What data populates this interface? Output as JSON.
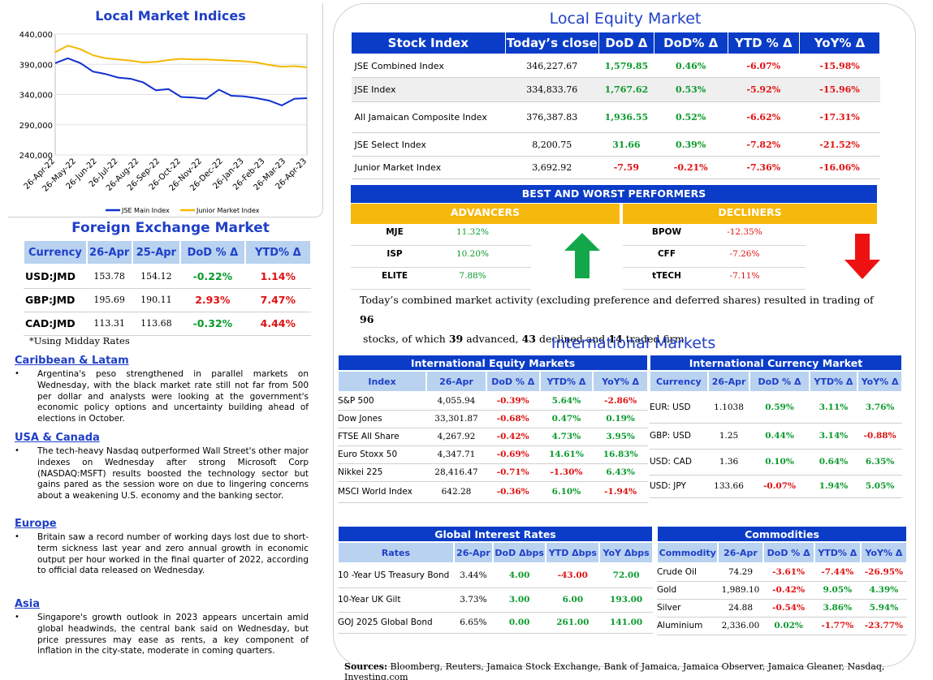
{
  "left": {
    "chart_title": "Local Market Indices",
    "chart_data": {
      "type": "line",
      "ylim": [
        240000,
        440000
      ],
      "yticks": [
        "440,000",
        "390,000",
        "340,000",
        "290,000",
        "240,000"
      ],
      "xticks": [
        "26-Apr-22",
        "26-May-22",
        "26-Jun-22",
        "26-Jul-22",
        "26-Aug-22",
        "26-Sep-22",
        "26-Oct-22",
        "26-Nov-22",
        "26-Dec-22",
        "26-Jan-23",
        "26-Feb-23",
        "26-Mar-23",
        "26-Apr-23"
      ],
      "series": [
        {
          "name": "JSE Main Index",
          "color": "#1030d0",
          "values": [
            392000,
            400000,
            392000,
            378000,
            374000,
            368000,
            366000,
            360000,
            347000,
            349000,
            336000,
            335000,
            333000,
            348000,
            338000,
            337000,
            334000,
            330000,
            322000,
            333000,
            334000
          ]
        },
        {
          "name": "Junior Market Index",
          "color": "#f5b800",
          "values": [
            410000,
            421000,
            415000,
            405000,
            400000,
            398000,
            396000,
            393000,
            394000,
            397000,
            399000,
            398000,
            398000,
            397000,
            396000,
            395000,
            393000,
            389000,
            386000,
            387000,
            385000
          ]
        }
      ]
    },
    "fx_title": "Foreign Exchange Market",
    "fx_headers": [
      "Currency",
      "26-Apr",
      "25-Apr",
      "DoD % Δ",
      "YTD% Δ"
    ],
    "fx_rows": [
      {
        "cur": "USD:JMD",
        "d1": "153.78",
        "d2": "154.12",
        "dod": "-0.22%",
        "ytd": "1.14%",
        "dod_cls": "pos",
        "ytd_cls": "neg"
      },
      {
        "cur": "GBP:JMD",
        "d1": "195.69",
        "d2": "190.11",
        "dod": "2.93%",
        "ytd": "7.47%",
        "dod_cls": "neg",
        "ytd_cls": "neg"
      },
      {
        "cur": "CAD:JMD",
        "d1": "113.31",
        "d2": "113.68",
        "dod": "-0.32%",
        "ytd": "4.44%",
        "dod_cls": "pos",
        "ytd_cls": "neg"
      }
    ],
    "fx_note": "*Using Midday Rates",
    "news": [
      {
        "head": "Caribbean & Latam",
        "body": "Argentina's peso strengthened in parallel markets on Wednesday, with the black market rate still not far from 500 per dollar and analysts were looking at the government's economic policy options and uncertainty building ahead of elections in October."
      },
      {
        "head": "USA & Canada",
        "body": "The tech-heavy Nasdaq outperformed Wall Street's other major indexes on Wednesday after strong Microsoft Corp (NASDAQ:MSFT) results boosted the technology sector but gains pared as the session wore on due to lingering concerns about a weakening U.S. economy and the banking sector."
      },
      {
        "head": "Europe",
        "body": "Britain saw a record number of working days lost due to short-term sickness last year and zero annual growth in economic output per hour worked in the final quarter of 2022, according to official data released on Wednesday."
      },
      {
        "head": "Asia",
        "body": "Singapore's growth outlook in 2023 appears uncertain amid global headwinds, the central bank said on Wednesday, but price pressures may ease as rents, a key component of inflation in the city-state, moderate in coming quarters."
      }
    ],
    "bullet": "•"
  },
  "equity": {
    "title": "Local Equity Market",
    "headers": [
      "Stock Index",
      "Today’s close",
      "DoD  Δ",
      "DoD% Δ",
      "YTD % Δ",
      "YoY% Δ"
    ],
    "rows": [
      {
        "name": "JSE Combined Index",
        "close": "346,227.67",
        "dod": "1,579.85",
        "dodp": "0.46%",
        "ytd": "-6.07%",
        "yoy": "-15.98%",
        "c": "pos"
      },
      {
        "name": "JSE Index",
        "close": "334,833.76",
        "dod": "1,767.62",
        "dodp": "0.53%",
        "ytd": "-5.92%",
        "yoy": "-15.96%",
        "c": "pos"
      },
      {
        "name": "All Jamaican Composite Index",
        "close": "376,387.83",
        "dod": "1,936.55",
        "dodp": "0.52%",
        "ytd": "-6.62%",
        "yoy": "-17.31%",
        "c": "pos"
      },
      {
        "name": "JSE Select Index",
        "close": "8,200.75",
        "dod": "31.66",
        "dodp": "0.39%",
        "ytd": "-7.82%",
        "yoy": "-21.52%",
        "c": "pos"
      },
      {
        "name": "Junior Market Index",
        "close": "3,692.92",
        "dod": "-7.59",
        "dodp": "-0.21%",
        "ytd": "-7.36%",
        "yoy": "-16.06%",
        "c": "neg"
      }
    ],
    "best_worst": "BEST AND WORST PERFORMERS",
    "advancers_label": "ADVANCERS",
    "decliners_label": "DECLINERS",
    "advancers": [
      {
        "sym": "MJE",
        "pct": "11.32%"
      },
      {
        "sym": "ISP",
        "pct": "10.20%"
      },
      {
        "sym": "ELITE",
        "pct": "7.88%"
      }
    ],
    "decliners": [
      {
        "sym": "BPOW",
        "pct": "-12.35%"
      },
      {
        "sym": "CFF",
        "pct": "-7.26%"
      },
      {
        "sym": "tTECH",
        "pct": "-7.11%"
      }
    ],
    "summary_1": "Today’s combined market activity (excluding preference and deferred shares) resulted in trading of ",
    "summary_n1": "96",
    "summary_2": " stocks, of which ",
    "summary_n2": "39",
    "summary_3": " advanced, ",
    "summary_n3": "43",
    "summary_4": " declined and ",
    "summary_n4": "14",
    "summary_5": " traded firm."
  },
  "intl": {
    "title": "International Markets",
    "eq_title": "International Equity Markets",
    "eq_headers": [
      "Index",
      "26-Apr",
      "DoD % Δ",
      "YTD% Δ",
      "YoY% Δ"
    ],
    "eq_rows": [
      {
        "name": "S&P 500",
        "v": "4,055.94",
        "dod": "-0.39%",
        "ytd": "5.64%",
        "yoy": "-2.86%",
        "dc": "neg",
        "yc": "pos",
        "oc": "neg"
      },
      {
        "name": "Dow Jones",
        "v": "33,301.87",
        "dod": "-0.68%",
        "ytd": "0.47%",
        "yoy": "0.19%",
        "dc": "neg",
        "yc": "pos",
        "oc": "pos"
      },
      {
        "name": "FTSE All Share",
        "v": "4,267.92",
        "dod": "-0.42%",
        "ytd": "4.73%",
        "yoy": "3.95%",
        "dc": "neg",
        "yc": "pos",
        "oc": "pos"
      },
      {
        "name": "Euro Stoxx 50",
        "v": "4,347.71",
        "dod": "-0.69%",
        "ytd": "14.61%",
        "yoy": "16.83%",
        "dc": "neg",
        "yc": "pos",
        "oc": "pos"
      },
      {
        "name": "Nikkei 225",
        "v": "28,416.47",
        "dod": "-0.71%",
        "ytd": "-1.30%",
        "yoy": "6.43%",
        "dc": "neg",
        "yc": "neg",
        "oc": "pos"
      },
      {
        "name": "MSCI World Index",
        "v": "642.28",
        "dod": "-0.36%",
        "ytd": "6.10%",
        "yoy": "-1.94%",
        "dc": "neg",
        "yc": "pos",
        "oc": "neg"
      }
    ],
    "cur_title": "International Currency Market",
    "cur_headers": [
      "Currency",
      "26-Apr",
      "DoD % Δ",
      "YTD% Δ",
      "YoY% Δ"
    ],
    "cur_rows": [
      {
        "name": "EUR: USD",
        "v": "1.1038",
        "dod": "0.59%",
        "ytd": "3.11%",
        "yoy": "3.76%",
        "dc": "pos",
        "yc": "pos",
        "oc": "pos"
      },
      {
        "name": "GBP: USD",
        "v": "1.25",
        "dod": "0.44%",
        "ytd": "3.14%",
        "yoy": "-0.88%",
        "dc": "pos",
        "yc": "pos",
        "oc": "neg"
      },
      {
        "name": "USD: CAD",
        "v": "1.36",
        "dod": "0.10%",
        "ytd": "0.64%",
        "yoy": "6.35%",
        "dc": "pos",
        "yc": "pos",
        "oc": "pos"
      },
      {
        "name": "USD: JPY",
        "v": "133.66",
        "dod": "-0.07%",
        "ytd": "1.94%",
        "yoy": "5.05%",
        "dc": "neg",
        "yc": "pos",
        "oc": "pos"
      }
    ],
    "rates_title": "Global Interest Rates",
    "rates_headers": [
      "Rates",
      "26-Apr",
      "DoD Δbps",
      "YTD Δbps",
      "YoY Δbps"
    ],
    "rates_rows": [
      {
        "name": "10 -Year US Treasury Bond",
        "v": "3.44%",
        "dod": "4.00",
        "ytd": "-43.00",
        "yoy": "72.00",
        "dc": "pos",
        "yc": "neg",
        "oc": "pos"
      },
      {
        "name": "10-Year UK Gilt",
        "v": "3.73%",
        "dod": "3.00",
        "ytd": "6.00",
        "yoy": "193.00",
        "dc": "pos",
        "yc": "pos",
        "oc": "pos"
      },
      {
        "name": "GOJ 2025 Global Bond",
        "v": "6.65%",
        "dod": "0.00",
        "ytd": "261.00",
        "yoy": "141.00",
        "dc": "pos",
        "yc": "pos",
        "oc": "pos"
      }
    ],
    "com_title": "Commodities",
    "com_headers": [
      "Commodity",
      "26-Apr",
      "DoD % Δ",
      "YTD% Δ",
      "YoY% Δ"
    ],
    "com_rows": [
      {
        "name": "Crude Oil",
        "v": "74.29",
        "dod": "-3.61%",
        "ytd": "-7.44%",
        "yoy": "-26.95%",
        "dc": "neg",
        "yc": "neg",
        "oc": "neg"
      },
      {
        "name": "Gold",
        "v": "1,989.10",
        "dod": "-0.42%",
        "ytd": "9.05%",
        "yoy": "4.39%",
        "dc": "neg",
        "yc": "pos",
        "oc": "pos"
      },
      {
        "name": "Silver",
        "v": "24.88",
        "dod": "-0.54%",
        "ytd": "3.86%",
        "yoy": "5.94%",
        "dc": "neg",
        "yc": "pos",
        "oc": "pos"
      },
      {
        "name": "Aluminium",
        "v": "2,336.00",
        "dod": "0.02%",
        "ytd": "-1.77%",
        "yoy": "-23.77%",
        "dc": "pos",
        "yc": "neg",
        "oc": "neg"
      }
    ]
  },
  "sources_label": "Sources:",
  "sources_text": " Bloomberg, Reuters, Jamaica Stock Exchange, Bank of Jamaica, Jamaica Observer, Jamaica Gleaner, Nasdaq, Investing.com"
}
